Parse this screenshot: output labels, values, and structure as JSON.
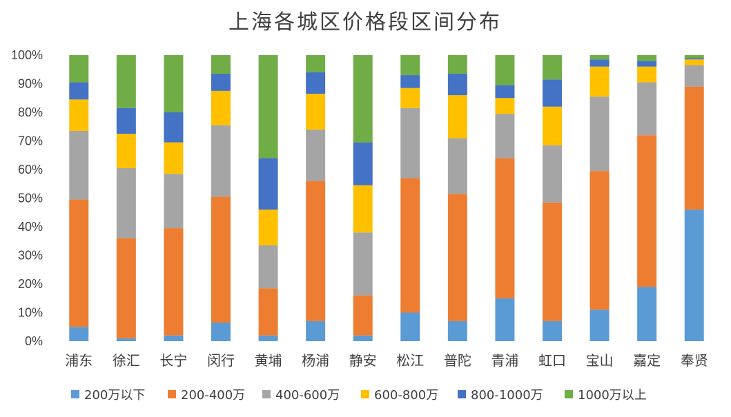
{
  "chart_data": {
    "type": "bar",
    "stacked": true,
    "title": "上海各城区价格段区间分布",
    "ylim": [
      0,
      100
    ],
    "yticks": [
      "0%",
      "10%",
      "20%",
      "30%",
      "40%",
      "50%",
      "60%",
      "70%",
      "80%",
      "90%",
      "100%"
    ],
    "grid": false,
    "legend_position": "bottom",
    "categories": [
      "浦东",
      "徐汇",
      "长宁",
      "闵行",
      "黄埔",
      "杨浦",
      "静安",
      "松江",
      "普陀",
      "青浦",
      "虹口",
      "宝山",
      "嘉定",
      "奉贤"
    ],
    "series": [
      {
        "name": "200万以下",
        "color": "#5B9BD5",
        "values": [
          5,
          1,
          2,
          6.5,
          2,
          7,
          2,
          10,
          7,
          15,
          7,
          11,
          19,
          46
        ]
      },
      {
        "name": "200-400万",
        "color": "#ED7D31",
        "values": [
          44.5,
          35,
          37.5,
          44,
          16.5,
          49,
          14,
          47,
          44.5,
          49,
          41.5,
          48.5,
          53,
          43
        ]
      },
      {
        "name": "400-600万",
        "color": "#A5A5A5",
        "values": [
          24,
          24.5,
          19,
          25,
          15,
          18,
          22,
          24.5,
          19.5,
          15.5,
          20,
          26,
          18.5,
          7.5
        ]
      },
      {
        "name": "600-800万",
        "color": "#FFC000",
        "values": [
          11,
          12,
          11,
          12,
          12.5,
          12.5,
          16.5,
          7,
          15,
          5.5,
          13.5,
          10.5,
          5.5,
          2
        ]
      },
      {
        "name": "800-1000万",
        "color": "#4472C4",
        "values": [
          6,
          9,
          10.5,
          6,
          18,
          7.5,
          15,
          4.5,
          7.5,
          4.5,
          9.5,
          2.5,
          2,
          0.5
        ]
      },
      {
        "name": "1000万以上",
        "color": "#70AD47",
        "values": [
          9.5,
          18.5,
          20,
          6.5,
          36,
          6,
          30.5,
          7,
          6.5,
          10.5,
          8.5,
          1.5,
          2,
          1
        ]
      }
    ]
  }
}
